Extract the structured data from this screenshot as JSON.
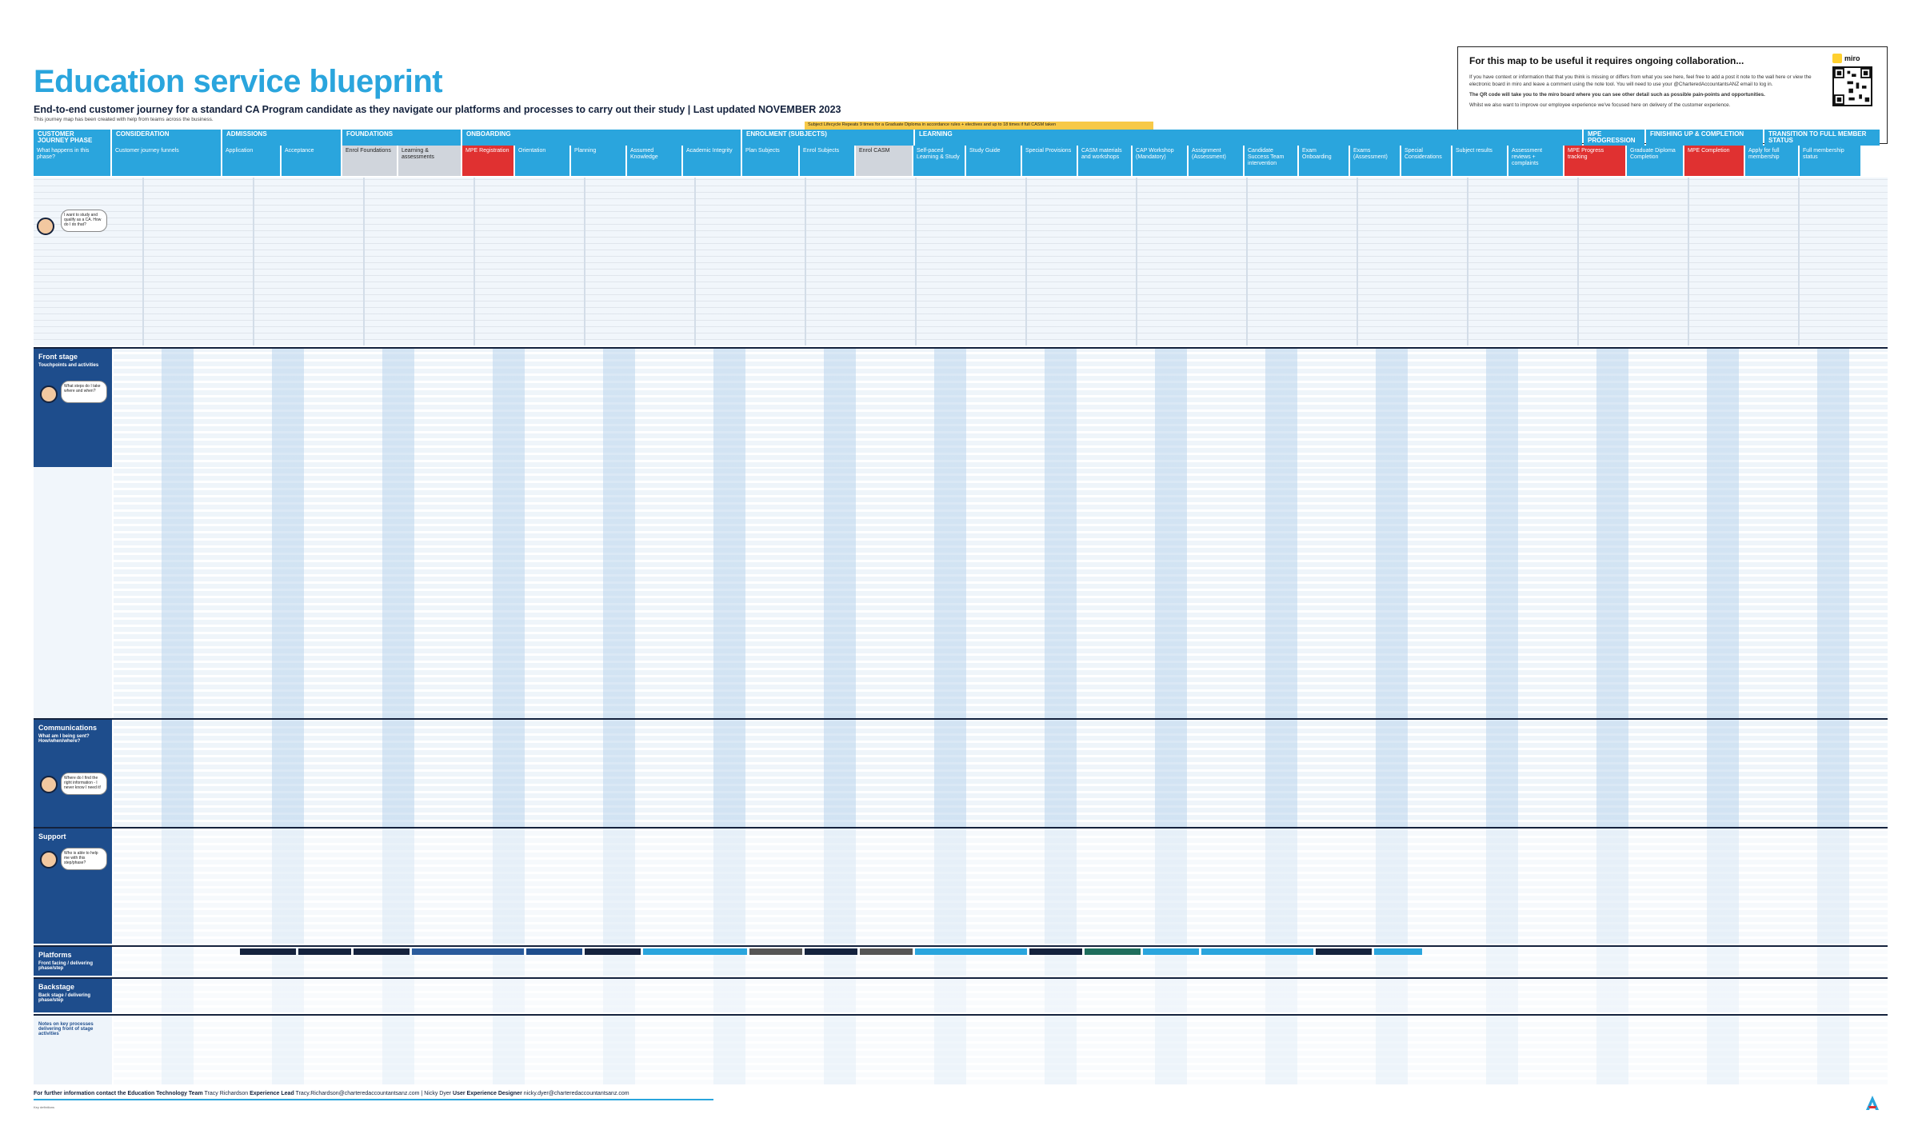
{
  "header": {
    "title": "Education service blueprint",
    "subtitle": "End-to-end customer journey for a standard CA Program candidate as they navigate our platforms and processes to carry out their study | Last updated NOVEMBER 2023",
    "note": "This journey map has been created with help from teams across the business."
  },
  "collab": {
    "heading": "For this map to be useful it requires ongoing collaboration...",
    "line1": "If you have context or information that that you think is missing or differs from what you see here, feel free to add a post it note to the wall here or view the electronic board in miro and leave a comment using the note tool. You will need to use your @CharteredAccountantsANZ email to log in.",
    "line2": "The QR code will take you to the miro board where you can see other detail such as possible pain-points and opportunities.",
    "line3": "Whilst we also want to improve our employee experience we've focused here on delivery of the customer experience.",
    "miro_label": "miro"
  },
  "lifecycle": "Subject Lifecycle Repeats 9 times for a Graduate Diploma in accordance rules + electives and up to 18 times if full CASM taken",
  "phases": [
    {
      "label": "CUSTOMER JOURNEY PHASE",
      "w": 96,
      "dark": false
    },
    {
      "label": "CONSIDERATION",
      "w": 136,
      "dark": false
    },
    {
      "label": "ADMISSIONS",
      "w": 148,
      "dark": false
    },
    {
      "label": "FOUNDATIONS",
      "w": 148,
      "dark": false
    },
    {
      "label": "ONBOARDING",
      "w": 348,
      "dark": false
    },
    {
      "label": "ENROLMENT (SUBJECTS)",
      "w": 214,
      "dark": false
    },
    {
      "label": "LEARNING",
      "w": 834,
      "dark": false
    },
    {
      "label": "MPE PROGRESSION",
      "w": 76,
      "dark": false
    },
    {
      "label": "FINISHING UP & COMPLETION",
      "w": 146,
      "dark": false
    },
    {
      "label": "TRANSITION TO FULL MEMBER STATUS",
      "w": 144,
      "dark": false
    }
  ],
  "subphases": [
    {
      "label": "What happens in this phase?",
      "w": 96,
      "style": ""
    },
    {
      "label": "Customer journey funnels",
      "w": 136,
      "style": ""
    },
    {
      "label": "Application",
      "w": 72,
      "style": ""
    },
    {
      "label": "Acceptance",
      "w": 74,
      "style": ""
    },
    {
      "label": "Enrol Foundations",
      "w": 68,
      "style": "grey"
    },
    {
      "label": "Learning & assessments",
      "w": 78,
      "style": "grey"
    },
    {
      "label": "MPE Registration",
      "w": 64,
      "style": "red"
    },
    {
      "label": "Orientation",
      "w": 68,
      "style": ""
    },
    {
      "label": "Planning",
      "w": 68,
      "style": ""
    },
    {
      "label": "Assumed Knowledge",
      "w": 68,
      "style": ""
    },
    {
      "label": "Academic Integrity",
      "w": 72,
      "style": ""
    },
    {
      "label": "Plan Subjects",
      "w": 70,
      "style": ""
    },
    {
      "label": "Enrol Subjects",
      "w": 68,
      "style": ""
    },
    {
      "label": "Enrol CASM",
      "w": 70,
      "style": "grey"
    },
    {
      "label": "Self-paced Learning & Study",
      "w": 64,
      "style": ""
    },
    {
      "label": "Study Guide",
      "w": 68,
      "style": ""
    },
    {
      "label": "Special Provisions",
      "w": 68,
      "style": ""
    },
    {
      "label": "CASM materials and workshops",
      "w": 66,
      "style": ""
    },
    {
      "label": "CAP Workshop (Mandatory)",
      "w": 68,
      "style": ""
    },
    {
      "label": "Assignment (Assessment)",
      "w": 68,
      "style": ""
    },
    {
      "label": "Candidate Success Team intervention",
      "w": 66,
      "style": ""
    },
    {
      "label": "Exam Onboarding",
      "w": 62,
      "style": ""
    },
    {
      "label": "Exams (Assessment)",
      "w": 62,
      "style": ""
    },
    {
      "label": "Special Considerations",
      "w": 62,
      "style": ""
    },
    {
      "label": "Subject results",
      "w": 68,
      "style": ""
    },
    {
      "label": "Assessment reviews + complaints",
      "w": 68,
      "style": ""
    },
    {
      "label": "MPE Progress tracking",
      "w": 76,
      "style": "red"
    },
    {
      "label": "Graduate Diploma Completion",
      "w": 70,
      "style": ""
    },
    {
      "label": "MPE Completion",
      "w": 74,
      "style": "red"
    },
    {
      "label": "Apply for full membership",
      "w": 66,
      "style": ""
    },
    {
      "label": "Full membership status",
      "w": 76,
      "style": ""
    }
  ],
  "lanes": {
    "front_stage": {
      "title": "Front stage",
      "sub": "Touchpoints and activities",
      "q": "What steps do I take where and when?"
    },
    "communications": {
      "title": "Communications",
      "sub": "What am I being sent? How/when/where?",
      "q": "Where do I find the right information - I never know I need it!"
    },
    "support": {
      "title": "Support",
      "sub": "",
      "q": "Who is able to help me with this step/phase?"
    },
    "platforms": {
      "title": "Platforms",
      "sub": "Front facing / delivering phase/step"
    },
    "backstage": {
      "title": "Backstage",
      "sub": "Back stage / delivering phase/step"
    },
    "notes": {
      "title": "",
      "sub": "Notes on key processes delivering front of stage activities"
    }
  },
  "persona_question": "I want to study and qualify as a CA. How do I do that?",
  "footer": {
    "lead": "For further information contact the Education Technology Team",
    "name1": "Tracy Richardson",
    "role1": "Experience Lead",
    "email1": "Tracy.Richardson@charteredaccountantsanz.com",
    "name2": "Nicky Dyer",
    "role2": "User Experience Designer",
    "email2": "nicky.dyer@charteredaccountantsanz.com",
    "fine": "Key definitions"
  },
  "colors": {
    "accent": "#2aa5dd",
    "navy": "#14223d",
    "red": "#e03131",
    "yellow": "#f7c948"
  }
}
